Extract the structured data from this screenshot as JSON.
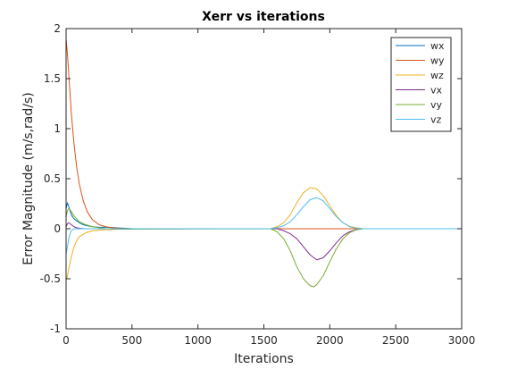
{
  "chart_data": {
    "type": "line",
    "title": "Xerr vs iterations",
    "xlabel": "Iterations",
    "ylabel": "Error Magnitude (m/s,rad/s)",
    "xlim": [
      0,
      3000
    ],
    "ylim": [
      -1,
      2
    ],
    "xticks": [
      "0",
      "500",
      "1000",
      "1500",
      "2000",
      "2500",
      "3000"
    ],
    "yticks": [
      "-1",
      "-0.5",
      "0",
      "0.5",
      "1",
      "1.5",
      "2"
    ],
    "grid": false,
    "legend_position": "top-right",
    "series": [
      {
        "name": "wx",
        "color": "#0072BD",
        "x": [
          0,
          10,
          20,
          30,
          40,
          60,
          80,
          100,
          130,
          160,
          200,
          250,
          300,
          350,
          400,
          450,
          500,
          3000
        ],
        "y": [
          0.2,
          0.26,
          0.22,
          0.18,
          0.14,
          0.1,
          0.08,
          0.06,
          0.04,
          0.03,
          0.02,
          0.015,
          0.015,
          0.012,
          0.008,
          0.004,
          0.0,
          0.0
        ]
      },
      {
        "name": "wy",
        "color": "#D95319",
        "x": [
          0,
          10,
          20,
          40,
          60,
          80,
          100,
          130,
          160,
          200,
          250,
          300,
          350,
          400,
          450,
          500,
          3000
        ],
        "y": [
          1.9,
          1.75,
          1.55,
          1.15,
          0.85,
          0.62,
          0.45,
          0.28,
          0.17,
          0.09,
          0.04,
          0.02,
          0.01,
          0.005,
          0.002,
          0.0,
          0.0
        ]
      },
      {
        "name": "wz",
        "color": "#EDB120",
        "x": [
          0,
          10,
          20,
          40,
          60,
          80,
          100,
          150,
          200,
          300,
          400,
          500,
          1550,
          1600,
          1650,
          1700,
          1750,
          1800,
          1850,
          1900,
          1950,
          2000,
          2050,
          2100,
          2150,
          2200,
          2250,
          3000
        ],
        "y": [
          -0.5,
          -0.48,
          -0.4,
          -0.28,
          -0.18,
          -0.12,
          -0.08,
          -0.04,
          -0.02,
          -0.01,
          -0.005,
          0.0,
          0.0,
          0.02,
          0.06,
          0.14,
          0.26,
          0.36,
          0.41,
          0.4,
          0.33,
          0.23,
          0.13,
          0.06,
          0.025,
          0.01,
          0.0,
          0.0
        ]
      },
      {
        "name": "vx",
        "color": "#7E2F8E",
        "x": [
          0,
          10,
          20,
          30,
          40,
          60,
          80,
          100,
          150,
          200,
          300,
          500,
          1600,
          1650,
          1700,
          1750,
          1800,
          1850,
          1900,
          1950,
          2000,
          2050,
          2100,
          2150,
          2200,
          2250,
          3000
        ],
        "y": [
          0.02,
          0.05,
          0.06,
          0.05,
          0.04,
          0.02,
          0.01,
          0.005,
          0.0,
          0.0,
          0.0,
          0.0,
          0.0,
          -0.02,
          -0.05,
          -0.1,
          -0.18,
          -0.26,
          -0.31,
          -0.29,
          -0.22,
          -0.14,
          -0.07,
          -0.03,
          -0.01,
          0.0,
          0.0
        ]
      },
      {
        "name": "vy",
        "color": "#77AC30",
        "x": [
          0,
          10,
          20,
          30,
          40,
          60,
          80,
          100,
          150,
          200,
          300,
          400,
          500,
          1550,
          1600,
          1650,
          1700,
          1750,
          1800,
          1850,
          1880,
          1900,
          1950,
          2000,
          2050,
          2100,
          2150,
          2200,
          2250,
          3000
        ],
        "y": [
          0.12,
          0.18,
          0.2,
          0.19,
          0.17,
          0.13,
          0.1,
          0.07,
          0.04,
          0.02,
          0.0,
          -0.005,
          -0.005,
          0.0,
          -0.03,
          -0.1,
          -0.22,
          -0.38,
          -0.5,
          -0.57,
          -0.58,
          -0.56,
          -0.47,
          -0.33,
          -0.2,
          -0.1,
          -0.04,
          -0.01,
          0.0,
          0.0
        ]
      },
      {
        "name": "vz",
        "color": "#4DBEEE",
        "x": [
          0,
          10,
          20,
          30,
          40,
          60,
          80,
          100,
          150,
          200,
          300,
          500,
          1550,
          1600,
          1650,
          1700,
          1750,
          1800,
          1850,
          1900,
          1950,
          2000,
          2050,
          2100,
          2150,
          2200,
          2250,
          3000
        ],
        "y": [
          -0.25,
          -0.18,
          -0.1,
          -0.05,
          -0.02,
          0.0,
          0.0,
          0.0,
          0.0,
          0.0,
          0.0,
          0.0,
          0.0,
          0.01,
          0.03,
          0.07,
          0.14,
          0.22,
          0.29,
          0.31,
          0.28,
          0.2,
          0.12,
          0.06,
          0.02,
          0.005,
          0.0,
          0.0
        ]
      }
    ]
  }
}
